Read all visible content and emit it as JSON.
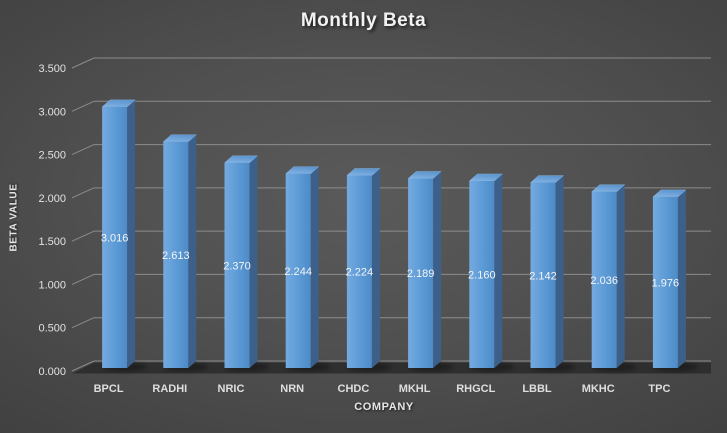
{
  "chart_data": {
    "type": "bar",
    "style": "3d-column",
    "title": "Monthly Beta",
    "xlabel": "COMPANY",
    "ylabel": "BETA VALUE",
    "categories": [
      "BPCL",
      "RADHI",
      "NRIC",
      "NRN",
      "CHDC",
      "MKHL",
      "RHGCL",
      "LBBL",
      "MKHC",
      "TPC"
    ],
    "values": [
      3.016,
      2.613,
      2.37,
      2.244,
      2.224,
      2.189,
      2.16,
      2.142,
      2.036,
      1.976
    ],
    "data_labels": [
      "3.016",
      "2.613",
      "2.370",
      "2.244",
      "2.224",
      "2.189",
      "2.160",
      "2.142",
      "2.036",
      "1.976"
    ],
    "ytick_labels": [
      "0.000",
      "0.500",
      "1.000",
      "1.500",
      "2.000",
      "2.500",
      "3.000",
      "3.500"
    ],
    "ytick_values": [
      0,
      0.5,
      1.0,
      1.5,
      2.0,
      2.5,
      3.0,
      3.5
    ],
    "ylim": [
      0,
      3.5
    ],
    "grid": true,
    "legend": "none",
    "colors": {
      "background_center": "#5a5a5a",
      "background_edge": "#242424",
      "bar_front_light": "#74aadf",
      "bar_front_dark": "#4e8bc6",
      "bar_top_light": "#85b4e4",
      "bar_top_dark": "#5d96cf",
      "bar_side": "#3d608b",
      "gridline": "#9b9b9b",
      "text": "#f2f2f2",
      "floor_shadow": "#2a2a2a"
    }
  }
}
